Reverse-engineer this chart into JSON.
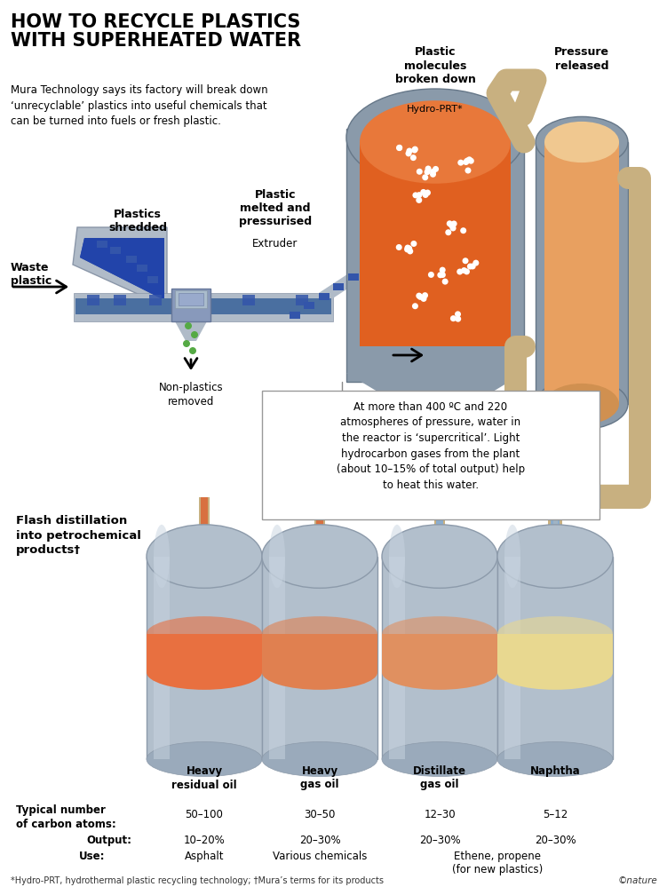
{
  "title": "HOW TO RECYCLE PLASTICS\nWITH SUPERHEATED WATER",
  "subtitle": "Mura Technology says its factory will break down\n‘unrecyclable’ plastics into useful chemicals that\ncan be turned into fuels or fresh plastic.",
  "bg_color": "#ffffff",
  "label_waste": "Waste\nplastic",
  "label_shredded": "Plastics\nshredded",
  "label_melted": "Plastic\nmelted and\npressurised",
  "label_extruder": "Extruder",
  "label_nonplastics": "Non-plastics\nremoved",
  "label_broken": "Plastic\nmolecules\nbroken down",
  "label_hydroprt": "Hydro-PRT*",
  "label_pressure": "Pressure\nreleased",
  "label_flash": "Flash distillation\ninto petrochemical\nproducts†",
  "callout_text": "At more than 400 ºC and 220\natmospheres of pressure, water in\nthe reactor is ‘supercritical’. Light\nhydrocarbon gases from the plant\n(about 10–15% of total output) help\nto heat this water.",
  "products": [
    "Heavy\nresidual oil",
    "Heavy\ngas oil",
    "Distillate\ngas oil",
    "Naphtha"
  ],
  "carbon_atoms": [
    "50–100",
    "30–50",
    "12–30",
    "5–12"
  ],
  "output_pct": [
    "10–20%",
    "20–30%",
    "20–30%",
    "20–30%"
  ],
  "footnote": "*Hydro-PRT, hydrothermal plastic recycling technology; †Mura’s terms for its products",
  "nature_credit": "©nature",
  "gray_tank": "#b0bbc8",
  "gray_dark": "#8a96a8",
  "gray_med": "#9aa8b8",
  "blue_conveyor": "#4a6fa0",
  "blue_dark": "#2a4a80",
  "blue_plastic_col": "#3355aa",
  "reactor_orange": "#e06020",
  "reactor_orange2": "#e8783a",
  "reactor_gray": "#8a9aaa",
  "pressure_orange": "#e8a060",
  "pressure_light": "#f0c890",
  "pipe_tan": "#c8b080",
  "pipe_orange": "#d87040",
  "pipe_blue": "#8aaccc",
  "pipe_gray": "#a0b4c4",
  "green_dot": "#55aa44",
  "band_orange1": "#e87040",
  "band_orange2": "#e08050",
  "band_orange3": "#e09060",
  "band_yellow": "#e8d890"
}
